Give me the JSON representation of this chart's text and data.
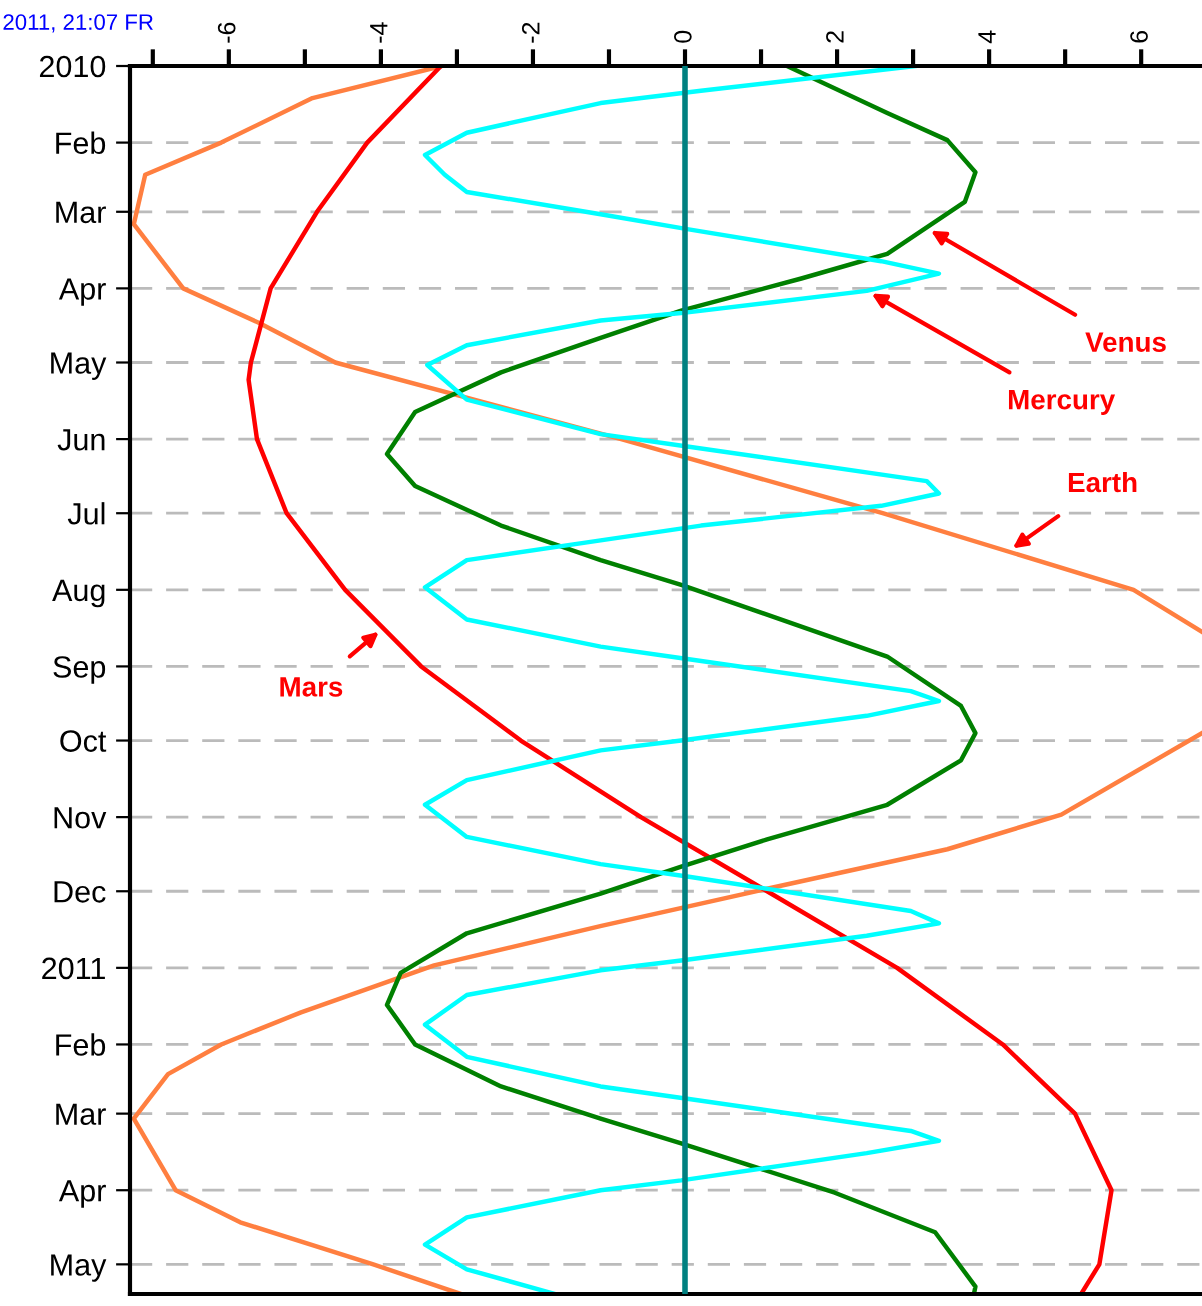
{
  "chart_data": {
    "type": "line",
    "orientation": "horizontal",
    "annotations": [
      "2011, 21:07 FR"
    ],
    "xlim": [
      -7.3,
      6.8
    ],
    "xticks": [
      {
        "value": -7,
        "label": null
      },
      -6,
      {
        "value": -5,
        "label": null
      },
      -4,
      {
        "value": -3,
        "label": null
      },
      -2,
      {
        "value": -1,
        "label": null
      },
      0,
      {
        "value": 1,
        "label": null
      },
      2,
      {
        "value": 3,
        "label": null
      },
      4,
      {
        "value": 5,
        "label": null
      },
      6
    ],
    "ylim": [
      "2011-05-13",
      "2010-01-01"
    ],
    "yticks": [
      {
        "value": "2010-01-01",
        "label": "2010"
      },
      {
        "value": "2010-02-01",
        "label": "Feb"
      },
      {
        "value": "2010-03-01",
        "label": "Mar"
      },
      {
        "value": "2010-04-01",
        "label": "Apr"
      },
      {
        "value": "2010-05-01",
        "label": "May"
      },
      {
        "value": "2010-06-01",
        "label": "Jun"
      },
      {
        "value": "2010-07-01",
        "label": "Jul"
      },
      {
        "value": "2010-08-01",
        "label": "Aug"
      },
      {
        "value": "2010-09-01",
        "label": "Sep"
      },
      {
        "value": "2010-10-01",
        "label": "Oct"
      },
      {
        "value": "2010-11-01",
        "label": "Nov"
      },
      {
        "value": "2010-12-01",
        "label": "Dec"
      },
      {
        "value": "2011-01-01",
        "label": "2011"
      },
      {
        "value": "2011-02-01",
        "label": "Feb"
      },
      {
        "value": "2011-03-01",
        "label": "Mar"
      },
      {
        "value": "2011-04-01",
        "label": "Apr"
      },
      {
        "value": "2011-05-01",
        "label": "May"
      }
    ],
    "grid": "y",
    "ref_lines": [
      {
        "axis": "x",
        "value": 0,
        "color": "#008080"
      }
    ],
    "series": [
      {
        "name": "Earth",
        "color": "#ff7f40",
        "x": [
          "2010-01-01",
          "2010-01-14",
          "2010-02-01",
          "2010-02-14",
          "2010-03-06",
          "2010-04-01",
          "2010-04-15",
          "2010-05-01",
          "2010-06-01",
          "2010-07-01",
          "2010-08-01",
          "2010-08-18",
          "2010-09-08",
          "2010-09-28",
          "2010-10-31",
          "2010-11-14",
          "2010-11-30",
          "2010-12-15",
          "2010-12-31",
          "2011-01-19",
          "2011-02-01",
          "2011-02-13",
          "2011-03-03",
          "2011-04-01",
          "2011-04-14",
          "2011-05-01",
          "2011-05-13"
        ],
        "values": [
          -3.2,
          -4.9,
          -6.1,
          -7.1,
          -7.25,
          -6.6,
          -5.6,
          -4.6,
          -0.84,
          2.6,
          5.9,
          6.8,
          null,
          6.8,
          4.95,
          3.45,
          1.08,
          -1.1,
          -3.3,
          -5.05,
          -6.1,
          -6.8,
          -7.25,
          -6.7,
          -5.85,
          -4.1,
          -2.95
        ]
      },
      {
        "name": "Mars",
        "color": "#ff0000",
        "x": [
          "2010-01-01",
          "2010-02-01",
          "2010-03-01",
          "2010-04-01",
          "2010-05-01",
          "2010-05-08",
          "2010-06-01",
          "2010-07-01",
          "2010-08-01",
          "2010-09-01",
          "2010-10-01",
          "2010-11-01",
          "2010-12-01",
          "2011-01-01",
          "2011-02-01",
          "2011-03-01",
          "2011-04-01",
          "2011-05-01",
          "2011-05-13"
        ],
        "values": [
          -3.21,
          -4.18,
          -4.84,
          -5.45,
          -5.71,
          -5.74,
          -5.63,
          -5.24,
          -4.47,
          -3.47,
          -2.16,
          -0.58,
          1.08,
          2.79,
          4.18,
          5.13,
          5.61,
          5.45,
          5.21
        ]
      },
      {
        "name": "Venus",
        "color": "#008000",
        "x": [
          "2010-01-01",
          "2010-01-20",
          "2010-01-31",
          "2010-02-13",
          "2010-02-25",
          "2010-03-18",
          "2010-03-28",
          "2010-04-10",
          "2010-04-21",
          "2010-05-05",
          "2010-05-21",
          "2010-06-07",
          "2010-06-20",
          "2010-07-06",
          "2010-07-20",
          "2010-07-30",
          "2010-08-28",
          "2010-09-17",
          "2010-09-28",
          "2010-10-09",
          "2010-10-27",
          "2010-11-10",
          "2010-11-21",
          "2010-12-02",
          "2010-12-18",
          "2011-01-03",
          "2011-01-16",
          "2011-02-01",
          "2011-02-18",
          "2011-03-03",
          "2011-03-13",
          "2011-04-02",
          "2011-04-18",
          "2011-05-10",
          "2011-05-13"
        ],
        "values": [
          1.34,
          2.66,
          3.45,
          3.82,
          3.68,
          2.66,
          1.53,
          -0.05,
          -1.11,
          -2.42,
          -3.55,
          -3.92,
          -3.55,
          -2.42,
          -1.11,
          -0.05,
          2.66,
          3.63,
          3.82,
          3.63,
          2.66,
          1.08,
          -0.05,
          -1.11,
          -2.87,
          -3.74,
          -3.92,
          -3.55,
          -2.42,
          -1.11,
          -0.05,
          1.97,
          3.29,
          3.82,
          3.8
        ]
      },
      {
        "name": "Mercury",
        "color": "#00ffff",
        "x": [
          "2010-01-01",
          "2010-01-11",
          "2010-01-16",
          "2010-01-28",
          "2010-02-06",
          "2010-02-14",
          "2010-02-21",
          "2010-03-02",
          "2010-03-08",
          "2010-03-21",
          "2010-03-26",
          "2010-04-02",
          "2010-04-11",
          "2010-04-14",
          "2010-04-24",
          "2010-05-02",
          "2010-05-16",
          "2010-05-30",
          "2010-06-04",
          "2010-06-18",
          "2010-06-23",
          "2010-06-28",
          "2010-07-06",
          "2010-07-12",
          "2010-07-20",
          "2010-07-31",
          "2010-08-13",
          "2010-08-24",
          "2010-08-29",
          "2010-09-11",
          "2010-09-15",
          "2010-09-21",
          "2010-10-01",
          "2010-10-05",
          "2010-10-17",
          "2010-10-27",
          "2010-11-09",
          "2010-11-20",
          "2010-11-25",
          "2010-12-09",
          "2010-12-14",
          "2010-12-19",
          "2010-12-29",
          "2011-01-02",
          "2011-01-12",
          "2011-01-24",
          "2011-02-06",
          "2011-02-18",
          "2011-02-23",
          "2011-03-08",
          "2011-03-12",
          "2011-03-17",
          "2011-03-28",
          "2011-04-01",
          "2011-04-12",
          "2011-04-23",
          "2011-05-03",
          "2011-05-13"
        ],
        "values": [
          3.03,
          0.21,
          -1.11,
          -2.87,
          -3.42,
          -3.16,
          -2.87,
          -1.11,
          0.03,
          2.58,
          3.34,
          2.39,
          -0.05,
          -1.11,
          -2.87,
          -3.39,
          -2.87,
          -1.11,
          0.03,
          3.18,
          3.34,
          2.58,
          0.21,
          -1.11,
          -2.87,
          -3.42,
          -2.87,
          -1.11,
          0.03,
          2.97,
          3.34,
          2.39,
          -0.05,
          -1.11,
          -2.87,
          -3.42,
          -2.87,
          -1.11,
          0.03,
          2.97,
          3.34,
          2.39,
          -0.05,
          -1.11,
          -2.87,
          -3.42,
          -2.87,
          -1.11,
          0.03,
          2.97,
          3.34,
          2.39,
          -0.05,
          -1.11,
          -2.87,
          -3.42,
          -2.87,
          -1.71
        ]
      }
    ]
  }
}
